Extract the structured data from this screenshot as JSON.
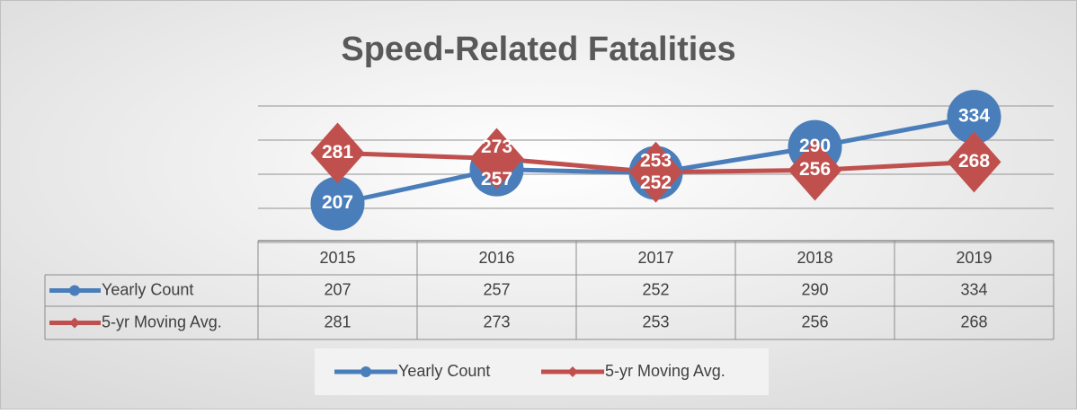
{
  "chart_data": {
    "type": "line",
    "title": "Speed-Related Fatalities",
    "categories": [
      "2015",
      "2016",
      "2017",
      "2018",
      "2019"
    ],
    "series": [
      {
        "name": "Yearly Count",
        "color": "#4a7ebb",
        "marker": "circle",
        "values": [
          207,
          257,
          252,
          290,
          334
        ]
      },
      {
        "name": "5-yr Moving Avg.",
        "color": "#c0504d",
        "marker": "diamond",
        "values": [
          281,
          273,
          253,
          256,
          268
        ]
      }
    ],
    "ylim": [
      150,
      350
    ],
    "yticks": [
      150,
      200,
      250,
      300,
      350
    ],
    "grid": true,
    "data_labels": true,
    "data_table": true,
    "legend": "bottom"
  }
}
